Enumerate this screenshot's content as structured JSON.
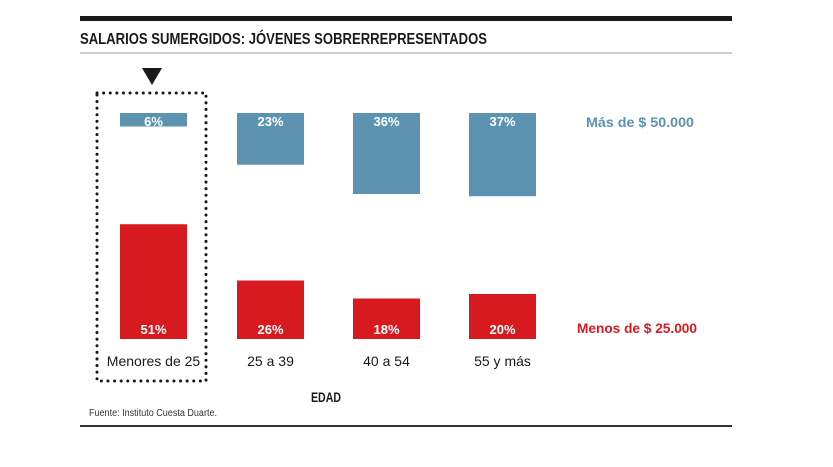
{
  "chart_data": {
    "type": "bar",
    "title": "SALARIOS SUMERGIDOS: JÓVENES SOBRERREPRESENTADOS",
    "xlabel": "EDAD",
    "ylabel": "",
    "categories": [
      "Menores de 25",
      "25 a 39",
      "40 a 54",
      "55 y más"
    ],
    "series": [
      {
        "name": "Más de $ 50.000",
        "values": [
          6,
          23,
          36,
          37
        ],
        "labels": [
          "6%",
          "23%",
          "36%",
          "37%"
        ],
        "color": "#5b93b0"
      },
      {
        "name": "Menos de $ 25.000",
        "values": [
          51,
          26,
          18,
          20
        ],
        "labels": [
          "51%",
          "26%",
          "18%",
          "20%"
        ],
        "color": "#d71920"
      }
    ],
    "highlight_category": "Menores de 25",
    "unit": "%",
    "grid": false,
    "legend": "right",
    "source": "Fuente: Instituto Cuesta Duarte."
  }
}
